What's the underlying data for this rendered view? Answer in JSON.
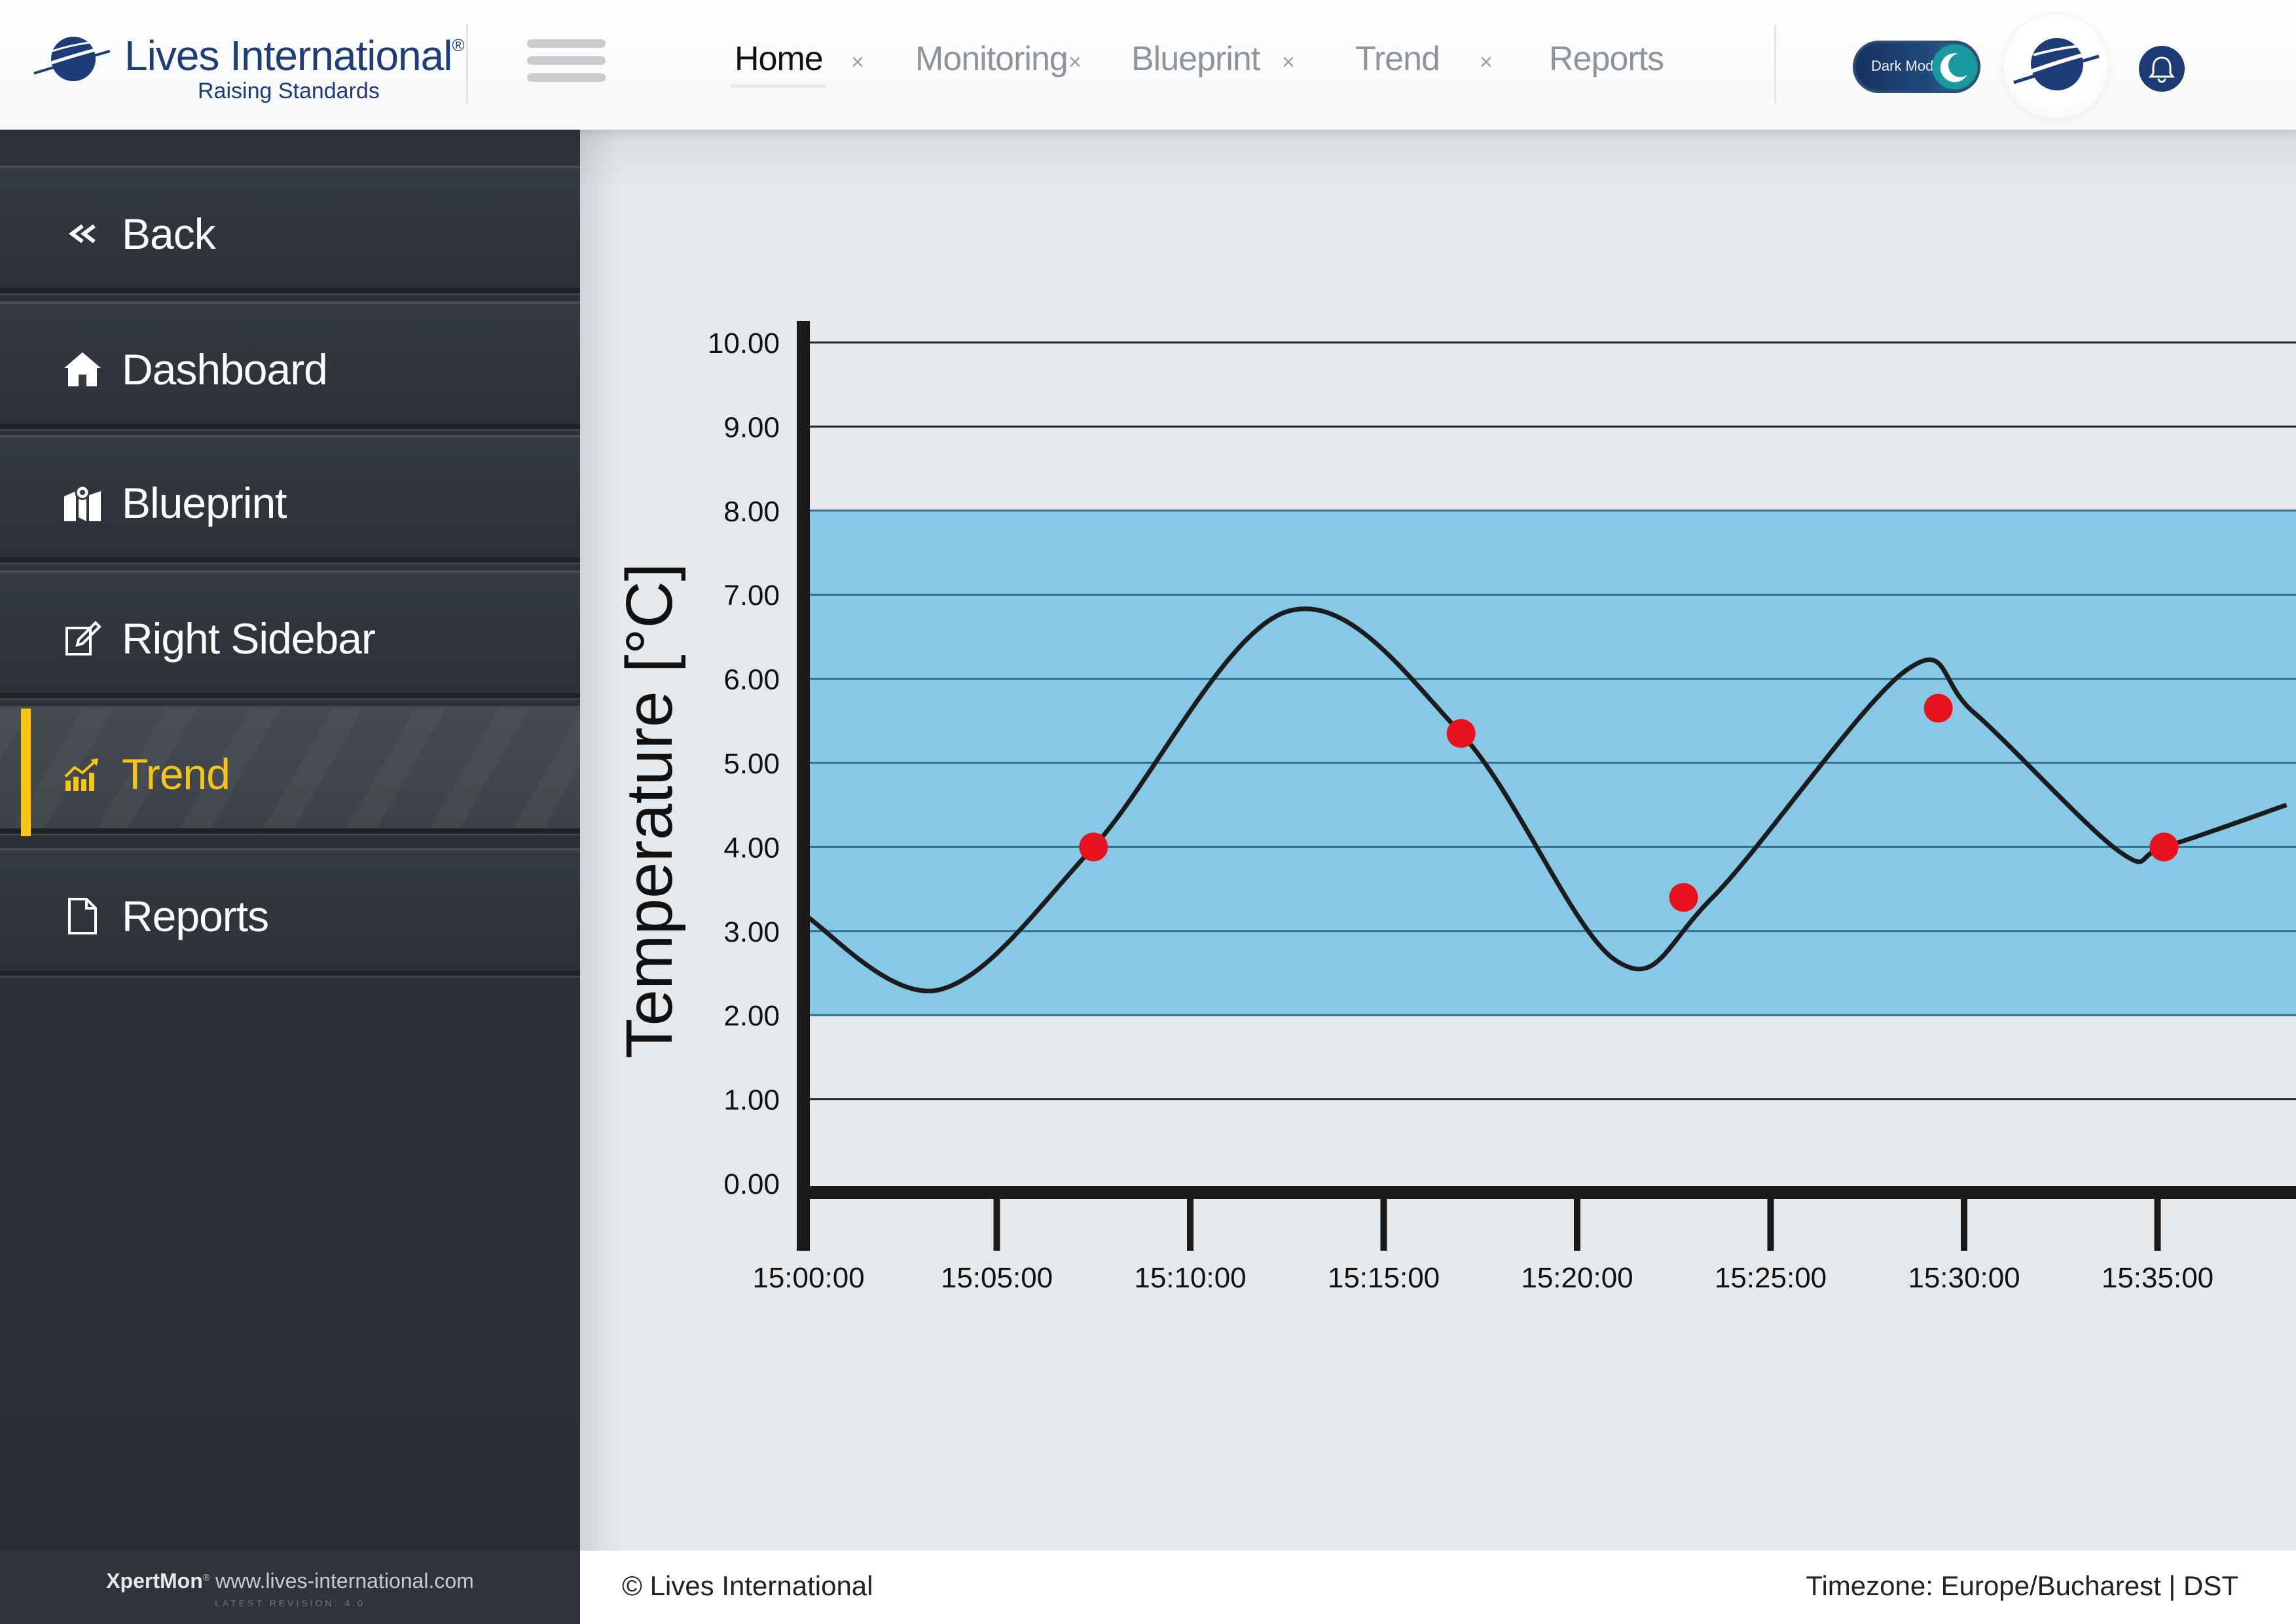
{
  "brand": {
    "name": "Lives International",
    "trademark": "®",
    "tagline": "Raising Standards"
  },
  "tabs": [
    {
      "label": "Home",
      "active": true
    },
    {
      "label": "Monitoring",
      "active": false
    },
    {
      "label": "Blueprint",
      "active": false
    },
    {
      "label": "Trend",
      "active": false
    },
    {
      "label": "Reports",
      "active": false
    }
  ],
  "tab_close_glyph": "×",
  "dark_mode_label": "Dark Mode",
  "sidebar": {
    "items": [
      {
        "label": "Back",
        "icon": "double-chevron-left-icon",
        "active": false
      },
      {
        "label": "Dashboard",
        "icon": "home-icon",
        "active": false
      },
      {
        "label": "Blueprint",
        "icon": "map-pin-icon",
        "active": false
      },
      {
        "label": "Right Sidebar",
        "icon": "edit-icon",
        "active": false
      },
      {
        "label": "Trend",
        "icon": "trend-chart-icon",
        "active": true
      },
      {
        "label": "Reports",
        "icon": "document-icon",
        "active": false
      }
    ],
    "footer_brand": "XpertMon",
    "footer_trademark": "®",
    "footer_url": "www.lives-international.com",
    "footer_revision": "LATEST REVISION: 4.0"
  },
  "footer": {
    "copyright": "© Lives International",
    "timezone": "Timezone: Europe/Bucharest | DST"
  },
  "colors": {
    "accent_yellow": "#f5c518",
    "brand_navy": "#1e3c78",
    "band_blue": "#87c8e6",
    "marker_red": "#e8121e"
  },
  "chart_data": {
    "type": "line",
    "ylabel": "Temperature [°C]",
    "xlabel": "",
    "ylim": [
      0,
      10
    ],
    "y_ticks": [
      "0.00",
      "1.00",
      "2.00",
      "3.00",
      "4.00",
      "5.00",
      "6.00",
      "7.00",
      "8.00",
      "9.00",
      "10.00"
    ],
    "x_ticks": [
      "15:00:00",
      "15:05:00",
      "15:10:00",
      "15:15:00",
      "15:20:00",
      "15:25:00",
      "15:30:00",
      "15:35:00"
    ],
    "target_band": [
      2,
      8
    ],
    "curve": [
      {
        "t": "15:00:00",
        "y": 3.2
      },
      {
        "t": "15:03:30",
        "y": 2.3
      },
      {
        "t": "15:07:30",
        "y": 4.0
      },
      {
        "t": "15:12:30",
        "y": 6.8
      },
      {
        "t": "15:17:00",
        "y": 5.35
      },
      {
        "t": "15:21:00",
        "y": 2.65
      },
      {
        "t": "15:23:30",
        "y": 3.4
      },
      {
        "t": "15:28:30",
        "y": 6.1
      },
      {
        "t": "15:30:15",
        "y": 5.6
      },
      {
        "t": "15:34:00",
        "y": 3.95
      },
      {
        "t": "15:35:10",
        "y": 4.0
      },
      {
        "t": "15:38:20",
        "y": 4.5
      }
    ],
    "markers": [
      {
        "t": "15:07:30",
        "y": 4.0
      },
      {
        "t": "15:17:00",
        "y": 5.35
      },
      {
        "t": "15:22:45",
        "y": 3.4
      },
      {
        "t": "15:29:20",
        "y": 5.65
      },
      {
        "t": "15:35:10",
        "y": 4.0
      }
    ]
  }
}
